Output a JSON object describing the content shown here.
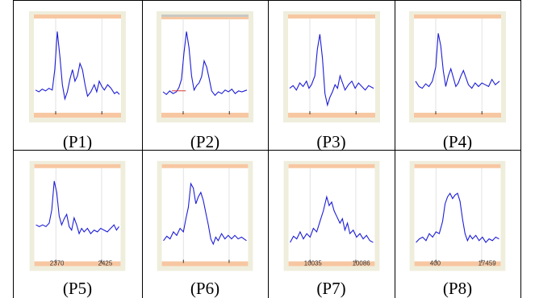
{
  "colors": {
    "frame": "#efeedd",
    "band": "#f7c7a2",
    "gray_band": "#c9c9c3",
    "grid": "#e2e2e2",
    "trace": "#1c1cd6",
    "marker": "#d63a3a",
    "border": "#000000"
  },
  "panels": [
    {
      "id": "P1",
      "caption": "(P1)",
      "bottom_tick_labels": []
    },
    {
      "id": "P2",
      "caption": "(P2)",
      "bottom_tick_labels": [],
      "top_gray_band": true,
      "red_marker": true
    },
    {
      "id": "P3",
      "caption": "(P3)",
      "bottom_tick_labels": []
    },
    {
      "id": "P4",
      "caption": "(P4)",
      "bottom_tick_labels": []
    },
    {
      "id": "P5",
      "caption": "(P5)",
      "bottom_tick_labels": [
        "2370",
        "2425"
      ]
    },
    {
      "id": "P6",
      "caption": "(P6)",
      "bottom_tick_labels": []
    },
    {
      "id": "P7",
      "caption": "(P7)",
      "bottom_tick_labels": [
        "10035",
        "10086"
      ]
    },
    {
      "id": "P8",
      "caption": "(P8)",
      "bottom_tick_labels": [
        "400",
        "17459"
      ]
    }
  ]
}
